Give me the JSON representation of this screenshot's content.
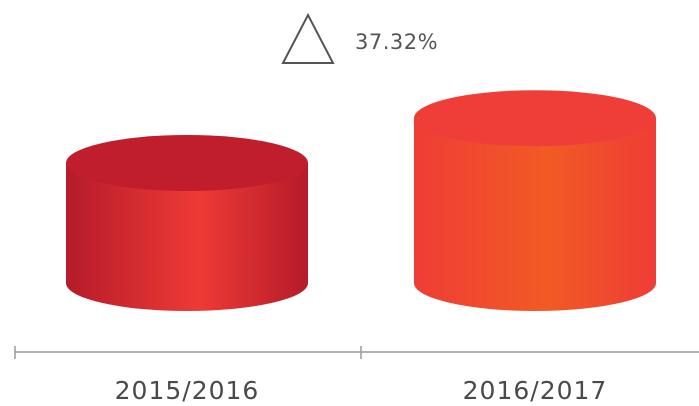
{
  "chart_data": {
    "type": "bar",
    "annotation": "37.32%",
    "categories": [
      "2015/2016",
      "2016/2017"
    ],
    "values": [
      100,
      137.32
    ],
    "colors": [
      {
        "edge": "#b51b2a",
        "center": "#ee3a35",
        "top": "#c01e2c"
      },
      {
        "edge": "#ee3d36",
        "center": "#f25a24",
        "top": "#ee3e37"
      }
    ]
  }
}
